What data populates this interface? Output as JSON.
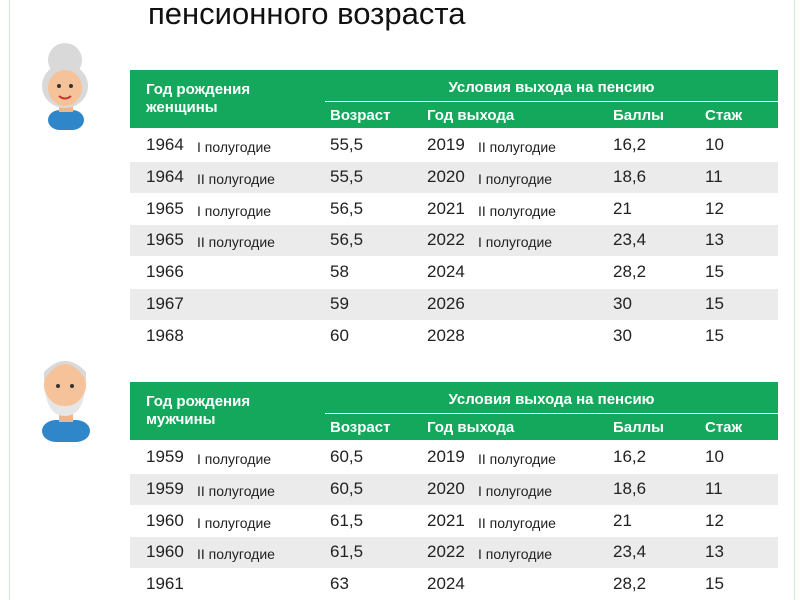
{
  "title": "пенсионного возраста",
  "tables": [
    {
      "header": {
        "birth": "Год рождения женщины",
        "conditions": "Условия выхода на пенсию",
        "age": "Возраст",
        "exit_year": "Год выхода",
        "points": "Баллы",
        "experience": "Стаж"
      },
      "rows": [
        {
          "birth_year": "1964",
          "birth_half": "I полугодие",
          "age": "55,5",
          "exit_year": "2019",
          "exit_half": "II полугодие",
          "points": "16,2",
          "experience": "10"
        },
        {
          "birth_year": "1964",
          "birth_half": "II полугодие",
          "age": "55,5",
          "exit_year": "2020",
          "exit_half": "I полугодие",
          "points": "18,6",
          "experience": "11"
        },
        {
          "birth_year": "1965",
          "birth_half": "I полугодие",
          "age": "56,5",
          "exit_year": "2021",
          "exit_half": "II полугодие",
          "points": "21",
          "experience": "12"
        },
        {
          "birth_year": "1965",
          "birth_half": "II полугодие",
          "age": "56,5",
          "exit_year": "2022",
          "exit_half": "I полугодие",
          "points": "23,4",
          "experience": "13"
        },
        {
          "birth_year": "1966",
          "age": "58",
          "exit_year": "2024",
          "points": "28,2",
          "experience": "15"
        },
        {
          "birth_year": "1967",
          "age": "59",
          "exit_year": "2026",
          "points": "30",
          "experience": "15"
        },
        {
          "birth_year": "1968",
          "age": "60",
          "exit_year": "2028",
          "points": "30",
          "experience": "15"
        }
      ]
    },
    {
      "header": {
        "birth": "Год рождения мужчины",
        "conditions": "Условия выхода на пенсию",
        "age": "Возраст",
        "exit_year": "Год выхода",
        "points": "Баллы",
        "experience": "Стаж"
      },
      "rows": [
        {
          "birth_year": "1959",
          "birth_half": "I полугодие",
          "age": "60,5",
          "exit_year": "2019",
          "exit_half": "II полугодие",
          "points": "16,2",
          "experience": "10"
        },
        {
          "birth_year": "1959",
          "birth_half": "II полугодие",
          "age": "60,5",
          "exit_year": "2020",
          "exit_half": "I полугодие",
          "points": "18,6",
          "experience": "11"
        },
        {
          "birth_year": "1960",
          "birth_half": "I полугодие",
          "age": "61,5",
          "exit_year": "2021",
          "exit_half": "II полугодие",
          "points": "21",
          "experience": "12"
        },
        {
          "birth_year": "1960",
          "birth_half": "II полугодие",
          "age": "61,5",
          "exit_year": "2022",
          "exit_half": "I полугодие",
          "points": "23,4",
          "experience": "13"
        },
        {
          "birth_year": "1961",
          "age": "63",
          "exit_year": "2024",
          "points": "28,2",
          "experience": "15"
        }
      ]
    }
  ]
}
